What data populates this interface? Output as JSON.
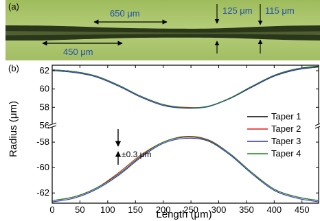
{
  "panel_a": {
    "label": "(a)",
    "measurements": [
      "650 μm",
      "125 μm",
      "115 μm",
      "450 μm"
    ]
  },
  "chart_data": {
    "type": "line",
    "panel_label": "(b)",
    "xlabel": "Length (μm)",
    "ylabel": "Radius (μm)",
    "xlim": [
      0,
      480
    ],
    "x_ticks": [
      "0",
      "50",
      "100",
      "150",
      "200",
      "250",
      "300",
      "350",
      "400",
      "450"
    ],
    "y_ticks_upper": [
      "62",
      "60",
      "58",
      "56"
    ],
    "y_ticks_lower": [
      "-58",
      "-60",
      "-62"
    ],
    "ylim_upper": [
      56,
      62.6
    ],
    "ylim_lower": [
      -62.8,
      -56.7
    ],
    "axis_break": true,
    "annotation": "±0.3 μm",
    "legend_position": "right",
    "x": [
      0,
      40,
      80,
      120,
      160,
      200,
      240,
      280,
      320,
      360,
      400,
      440,
      480
    ],
    "series": [
      {
        "name": "Taper 1",
        "color": "#000000",
        "upper": [
          62.1,
          61.9,
          61.4,
          60.4,
          59.2,
          58.3,
          57.95,
          58.1,
          59.0,
          60.3,
          61.5,
          62.2,
          62.5
        ],
        "lower": [
          -62.6,
          -62.3,
          -61.6,
          -60.5,
          -59.1,
          -58.0,
          -57.6,
          -57.8,
          -58.9,
          -60.4,
          -61.7,
          -62.3,
          -62.6
        ]
      },
      {
        "name": "Taper 2",
        "color": "#e31a1c",
        "upper": [
          62.1,
          61.9,
          61.4,
          60.4,
          59.2,
          58.3,
          58.0,
          58.1,
          59.0,
          60.3,
          61.4,
          62.1,
          62.4
        ],
        "lower": [
          -62.6,
          -62.3,
          -61.6,
          -60.4,
          -59.0,
          -58.0,
          -57.55,
          -57.8,
          -58.9,
          -60.4,
          -61.7,
          -62.3,
          -62.6
        ]
      },
      {
        "name": "Taper 3",
        "color": "#2a2ad6",
        "upper": [
          62.0,
          61.8,
          61.3,
          60.3,
          59.1,
          58.2,
          57.9,
          58.05,
          58.95,
          60.2,
          61.4,
          62.1,
          62.4
        ],
        "lower": [
          -62.7,
          -62.4,
          -61.7,
          -60.6,
          -59.2,
          -58.1,
          -57.7,
          -57.9,
          -59.0,
          -60.5,
          -61.8,
          -62.4,
          -62.7
        ]
      },
      {
        "name": "Taper 4",
        "color": "#1a8a1a",
        "upper": [
          62.1,
          61.9,
          61.4,
          60.4,
          59.2,
          58.3,
          57.95,
          58.1,
          59.0,
          60.3,
          61.5,
          62.2,
          62.4
        ],
        "lower": [
          -62.6,
          -62.3,
          -61.6,
          -60.5,
          -59.1,
          -58.0,
          -57.6,
          -57.85,
          -58.9,
          -60.4,
          -61.7,
          -62.3,
          -62.6
        ]
      }
    ]
  },
  "colors": {
    "micrograph_bg": "#aac36a",
    "fiber": "#1e2a12",
    "measure_text": "#1f4fb0"
  }
}
